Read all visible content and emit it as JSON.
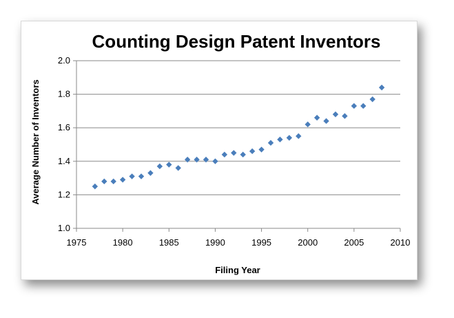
{
  "chart_data": {
    "type": "scatter",
    "title": "Counting Design Patent Inventors",
    "xlabel": "Filing Year",
    "ylabel": "Average Number of Inventors",
    "xlim": [
      1975,
      2010
    ],
    "ylim": [
      1.0,
      2.0
    ],
    "xticks": [
      1975,
      1980,
      1985,
      1990,
      1995,
      2000,
      2005,
      2010
    ],
    "yticks": [
      1.0,
      1.2,
      1.4,
      1.6,
      1.8,
      2.0
    ],
    "ytick_labels": [
      "1.0",
      "1.2",
      "1.4",
      "1.6",
      "1.8",
      "2.0"
    ],
    "grid": "horizontal",
    "marker_color": "#4a7ebb",
    "series": [
      {
        "name": "Average Number of Inventors",
        "x": [
          1977,
          1978,
          1979,
          1980,
          1981,
          1982,
          1983,
          1984,
          1985,
          1986,
          1987,
          1988,
          1989,
          1990,
          1991,
          1992,
          1993,
          1994,
          1995,
          1996,
          1997,
          1998,
          1999,
          2000,
          2001,
          2002,
          2003,
          2004,
          2005,
          2006,
          2007,
          2008
        ],
        "y": [
          1.25,
          1.28,
          1.28,
          1.29,
          1.31,
          1.31,
          1.33,
          1.37,
          1.38,
          1.36,
          1.41,
          1.41,
          1.41,
          1.4,
          1.44,
          1.45,
          1.44,
          1.46,
          1.47,
          1.51,
          1.53,
          1.54,
          1.55,
          1.62,
          1.66,
          1.64,
          1.68,
          1.67,
          1.73,
          1.73,
          1.77,
          1.84
        ]
      }
    ]
  }
}
